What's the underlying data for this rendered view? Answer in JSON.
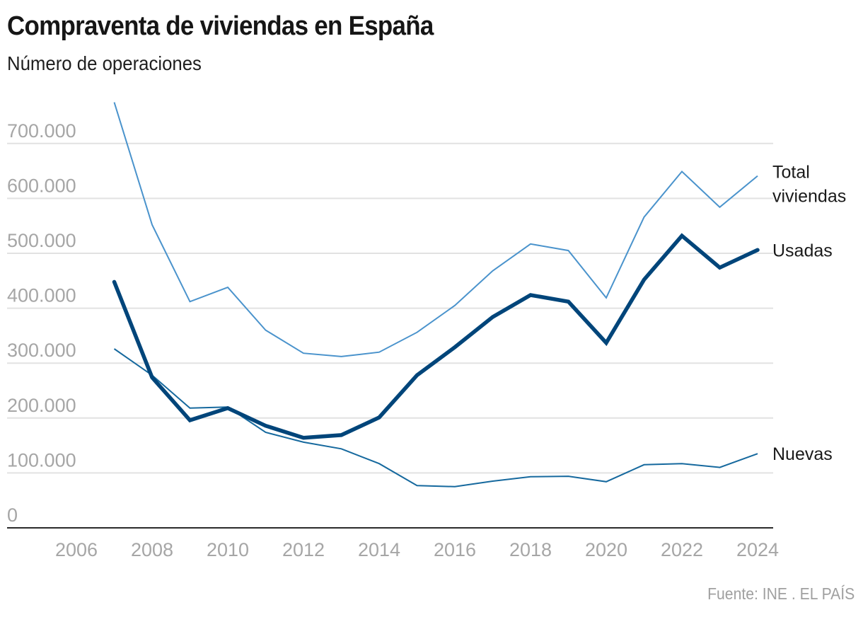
{
  "header": {
    "title": "Compraventa de viviendas en España",
    "subtitle": "Número de operaciones"
  },
  "footer": {
    "source": "Fuente: INE . EL PAÍS"
  },
  "chart_data": {
    "type": "line",
    "title": "Compraventa de viviendas en España",
    "subtitle": "Número de operaciones",
    "xlabel": "",
    "ylabel": "",
    "x": [
      2007,
      2008,
      2009,
      2010,
      2011,
      2012,
      2013,
      2014,
      2015,
      2016,
      2017,
      2018,
      2019,
      2020,
      2021,
      2022,
      2023,
      2024
    ],
    "xlim": [
      2006,
      2024
    ],
    "ylim": [
      0,
      700000
    ],
    "x_ticks": [
      "2006",
      "2008",
      "2010",
      "2012",
      "2014",
      "2016",
      "2018",
      "2020",
      "2022",
      "2024"
    ],
    "x_tick_values": [
      2006,
      2008,
      2010,
      2012,
      2014,
      2016,
      2018,
      2020,
      2022,
      2024
    ],
    "y_ticks": [
      "0",
      "100.000",
      "200.000",
      "300.000",
      "400.000",
      "500.000",
      "600.000",
      "700.000"
    ],
    "y_tick_values": [
      0,
      100000,
      200000,
      300000,
      400000,
      500000,
      600000,
      700000
    ],
    "grid": true,
    "legend": "direct labels at right end of lines",
    "series": [
      {
        "name": "Total viviendas",
        "label_lines": [
          "Total",
          "viviendas"
        ],
        "color": "#4a93cc",
        "emphasis": "thin",
        "values": [
          775000,
          552000,
          412000,
          438000,
          360000,
          318000,
          312000,
          320000,
          356000,
          405000,
          468000,
          517000,
          505000,
          419000,
          566000,
          649000,
          584000,
          641000
        ]
      },
      {
        "name": "Usadas",
        "label_lines": [
          "Usadas"
        ],
        "color": "#00457a",
        "emphasis": "thick",
        "values": [
          448000,
          274000,
          196000,
          218000,
          186000,
          164000,
          169000,
          201000,
          278000,
          329000,
          384000,
          424000,
          412000,
          337000,
          452000,
          532000,
          474000,
          506000
        ]
      },
      {
        "name": "Nuevas",
        "label_lines": [
          "Nuevas"
        ],
        "color": "#16699e",
        "emphasis": "thin",
        "values": [
          326000,
          278000,
          218000,
          220000,
          174000,
          156000,
          144000,
          117000,
          77000,
          75000,
          85000,
          93000,
          94000,
          84000,
          115000,
          117000,
          110000,
          135000
        ]
      }
    ]
  }
}
